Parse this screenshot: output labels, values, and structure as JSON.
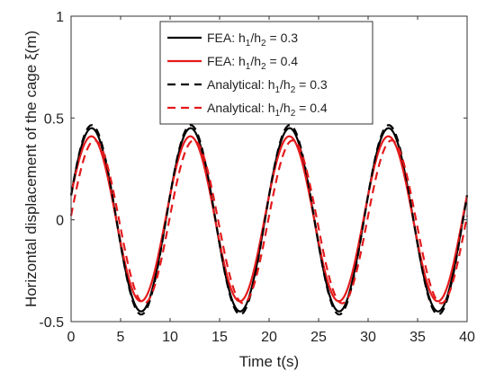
{
  "chart_data": {
    "type": "line",
    "title": "",
    "xlabel": "Time t(s)",
    "ylabel": "Horizontal displacement of the cage  ξ(m)",
    "xlim": [
      0,
      40
    ],
    "ylim": [
      -0.5,
      1
    ],
    "x_ticks": [
      "0",
      "5",
      "10",
      "15",
      "20",
      "25",
      "30",
      "35",
      "40"
    ],
    "y_ticks": [
      "-0.5",
      "0",
      "0.5",
      "1"
    ],
    "grid": false,
    "legend_position": "top-center",
    "period": 10,
    "series": [
      {
        "name": "FEA: h1/h2 = 0.3",
        "label_parts": [
          "FEA: h",
          "1",
          "/h",
          "2",
          " = 0.3"
        ],
        "color": "#000000",
        "dash": "solid",
        "amplitude": 0.45,
        "offset": 0.0,
        "phase_at_zero": 0.12,
        "peak_time": 2.1
      },
      {
        "name": "FEA: h1/h2 = 0.4",
        "label_parts": [
          "FEA: h",
          "1",
          "/h",
          "2",
          " = 0.4"
        ],
        "color": "#e41a1c",
        "dash": "solid",
        "amplitude": 0.405,
        "offset": 0.005,
        "phase_at_zero": 0.12,
        "peak_time": 2.1
      },
      {
        "name": "Analytical: h1/h2 = 0.3",
        "label_parts": [
          "Analytical: h",
          "1",
          "/h",
          "2",
          " = 0.3"
        ],
        "color": "#000000",
        "dash": "dashed",
        "amplitude": 0.465,
        "offset": 0.0,
        "phase_at_zero": 0.12,
        "peak_time": 2.3
      },
      {
        "name": "Analytical: h1/h2 = 0.4",
        "label_parts": [
          "Analytical: h",
          "1",
          "/h",
          "2",
          " = 0.4"
        ],
        "color": "#e41a1c",
        "dash": "dashed",
        "amplitude": 0.4,
        "offset": -0.01,
        "phase_at_zero": 0.02,
        "peak_time": 2.6
      }
    ]
  }
}
